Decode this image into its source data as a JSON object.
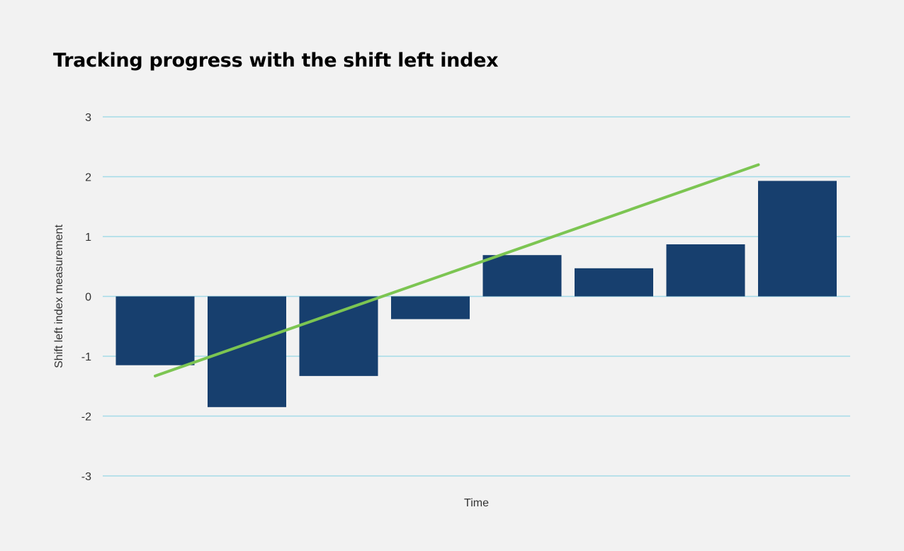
{
  "chart_data": {
    "type": "bar",
    "title": "Tracking progress with the shift left index",
    "xlabel": "Time",
    "ylabel": "Shift left index measurement",
    "ylim": [
      -3,
      3
    ],
    "yticks": [
      3,
      2,
      1,
      0,
      -1,
      -2,
      -3
    ],
    "categories": [
      "",
      "",
      "",
      "",
      "",
      "",
      "",
      ""
    ],
    "values": [
      -1.15,
      -1.85,
      -1.33,
      -0.38,
      0.69,
      0.47,
      0.87,
      1.93
    ],
    "trendline": {
      "start": -1.33,
      "end": 2.2
    },
    "grid": true,
    "legend": "none",
    "colors": {
      "bar": "#173f6e",
      "trend": "#7cc552",
      "grid": "#a4dbe8",
      "background": "#f2f2f2"
    }
  }
}
